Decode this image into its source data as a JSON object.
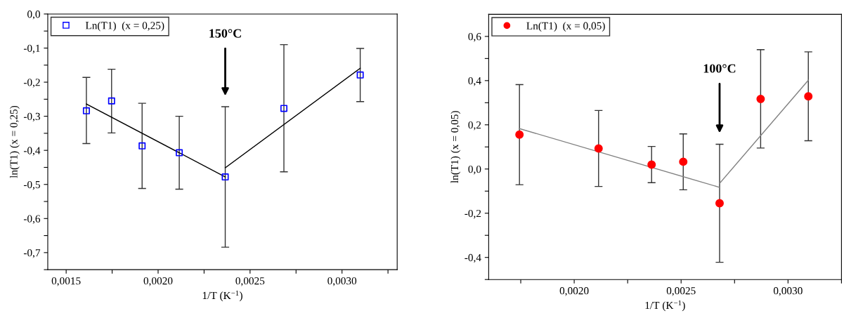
{
  "chart_data": [
    {
      "type": "scatter",
      "xlabel": "1/T (K$^{−1}$)",
      "ylabel": "ln(T1) (x = 0,25)",
      "legend": "top left",
      "marker": "square",
      "xlim": [
        0.0014,
        0.0033
      ],
      "ylim": [
        -0.75,
        0.0
      ],
      "xticks": [
        {
          "value": 0.0015,
          "label": "0,0015"
        },
        {
          "value": 0.00175,
          "label": null
        },
        {
          "value": 0.002,
          "label": "0,0020"
        },
        {
          "value": 0.00225,
          "label": null
        },
        {
          "value": 0.0025,
          "label": "0,0025"
        },
        {
          "value": 0.00275,
          "label": null
        },
        {
          "value": 0.003,
          "label": "0,0030"
        },
        {
          "value": 0.00325,
          "label": null
        }
      ],
      "yticks": [
        {
          "value": 0.0,
          "label": "0,0"
        },
        {
          "value": -0.05,
          "label": null
        },
        {
          "value": -0.1,
          "label": "-0,1"
        },
        {
          "value": -0.15,
          "label": null
        },
        {
          "value": -0.2,
          "label": "-0,2"
        },
        {
          "value": -0.25,
          "label": null
        },
        {
          "value": -0.3,
          "label": "-0,3"
        },
        {
          "value": -0.35,
          "label": null
        },
        {
          "value": -0.4,
          "label": "-0,4"
        },
        {
          "value": -0.45,
          "label": null
        },
        {
          "value": -0.5,
          "label": "-0,5"
        },
        {
          "value": -0.55,
          "label": null
        },
        {
          "value": -0.6,
          "label": "-0,6"
        },
        {
          "value": -0.65,
          "label": null
        },
        {
          "value": -0.7,
          "label": "-0,7"
        },
        {
          "value": -0.75,
          "label": null
        }
      ],
      "annotations": [
        "150°C"
      ],
      "series": [
        {
          "name": "Ln(T1)  (x = 0,25)",
          "color": "#0000ff",
          "x": [
            0.00161,
            0.001747,
            0.001913,
            0.002115,
            0.002365,
            0.002684,
            0.003099
          ],
          "values": [
            -0.284,
            -0.255,
            -0.387,
            -0.407,
            -0.478,
            -0.277,
            -0.179
          ],
          "errors": [
            [
              -0.38,
              -0.186
            ],
            [
              -0.349,
              -0.162
            ],
            [
              -0.512,
              -0.262
            ],
            [
              -0.514,
              -0.3
            ],
            [
              -0.684,
              -0.272
            ],
            [
              -0.463,
              -0.09
            ],
            [
              -0.257,
              -0.101
            ]
          ]
        },
        {
          "type": "line",
          "marker": "none",
          "color": "#000000",
          "x": [
            0.00161,
            0.002365
          ],
          "values": [
            -0.264,
            -0.478
          ]
        },
        {
          "type": "line",
          "marker": "none",
          "color": "#000000",
          "x": [
            0.002365,
            0.003099
          ],
          "values": [
            -0.451,
            -0.159
          ]
        }
      ]
    },
    {
      "type": "scatter",
      "xlabel": "1/T (K$^{−1}$)",
      "ylabel": "ln(T1) (x = 0,05)",
      "legend": "top left",
      "marker": "circle",
      "xlim": [
        0.0016,
        0.00325
      ],
      "ylim": [
        -0.5,
        0.7
      ],
      "xticks": [
        {
          "value": 0.00175,
          "label": null
        },
        {
          "value": 0.002,
          "label": "0,0020"
        },
        {
          "value": 0.00225,
          "label": null
        },
        {
          "value": 0.0025,
          "label": "0,0025"
        },
        {
          "value": 0.00275,
          "label": null
        },
        {
          "value": 0.003,
          "label": "0,0030"
        },
        {
          "value": 0.00325,
          "label": null
        }
      ],
      "yticks": [
        {
          "value": -0.5,
          "label": null
        },
        {
          "value": -0.4,
          "label": "-0,4"
        },
        {
          "value": -0.3,
          "label": null
        },
        {
          "value": -0.2,
          "label": "-0,2"
        },
        {
          "value": -0.1,
          "label": null
        },
        {
          "value": 0.0,
          "label": "0,0"
        },
        {
          "value": 0.1,
          "label": null
        },
        {
          "value": 0.2,
          "label": "0,2"
        },
        {
          "value": 0.3,
          "label": null
        },
        {
          "value": 0.4,
          "label": "0,4"
        },
        {
          "value": 0.5,
          "label": null
        },
        {
          "value": 0.6,
          "label": "0,6"
        }
      ],
      "annotations": [
        "100°C"
      ],
      "series": [
        {
          "name": "Ln(T1)  (x = 0,05)",
          "color": "#ff0000",
          "x": [
            0.001744,
            0.002114,
            0.002362,
            0.00251,
            0.00268,
            0.002872,
            0.003095
          ],
          "values": [
            0.156,
            0.093,
            0.02,
            0.033,
            -0.155,
            0.317,
            0.329
          ],
          "errors": [
            [
              -0.071,
              0.382
            ],
            [
              -0.079,
              0.265
            ],
            [
              -0.062,
              0.102
            ],
            [
              -0.094,
              0.159
            ],
            [
              -0.422,
              0.112
            ],
            [
              0.095,
              0.54
            ],
            [
              0.128,
              0.53
            ]
          ]
        },
        {
          "type": "line",
          "marker": "none",
          "color": "#808080",
          "x": [
            0.001744,
            0.00268
          ],
          "values": [
            0.183,
            -0.083
          ]
        },
        {
          "type": "line",
          "marker": "none",
          "color": "#808080",
          "x": [
            0.00268,
            0.003095
          ],
          "values": [
            -0.065,
            0.402
          ]
        }
      ]
    }
  ]
}
